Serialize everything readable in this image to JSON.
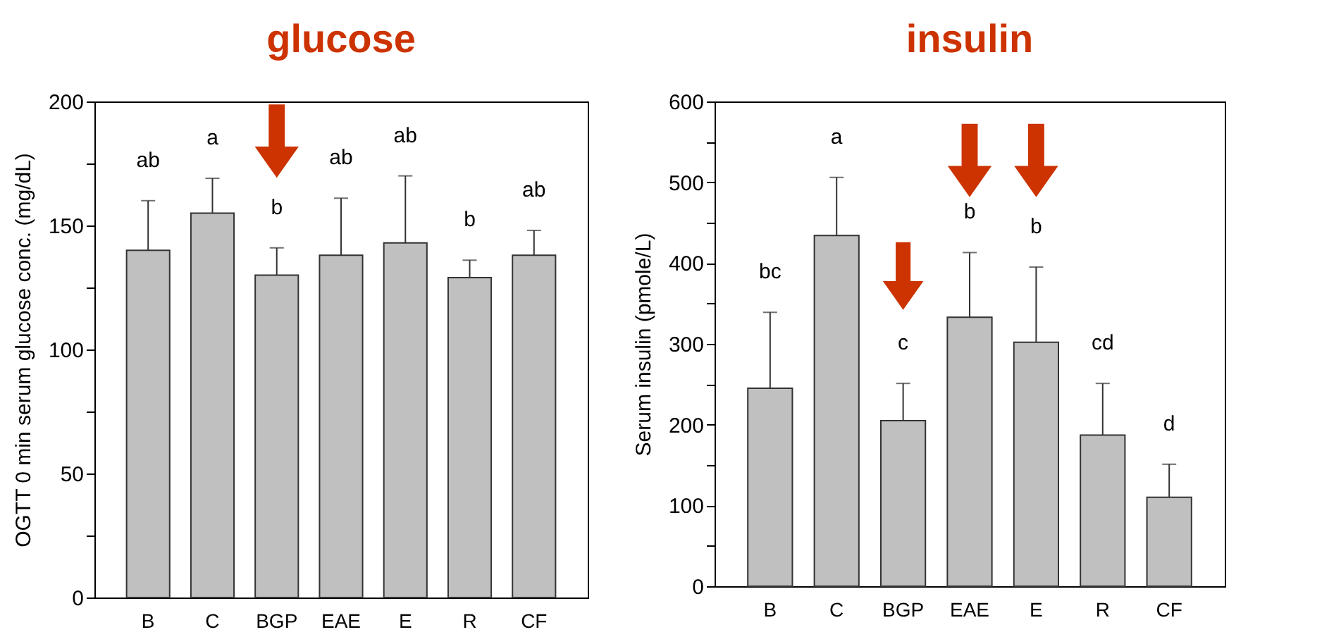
{
  "chart_data": [
    {
      "type": "bar",
      "title": "glucose",
      "ylabel": "OGTT 0 min serum glucose conc. (mg/dL)",
      "categories": [
        "B",
        "C",
        "BGP",
        "EAE",
        "E",
        "R",
        "CF"
      ],
      "values": [
        140,
        155,
        130,
        138,
        143,
        129,
        138
      ],
      "errors": [
        [
          140,
          160
        ],
        [
          155,
          169
        ],
        [
          130,
          141
        ],
        [
          138,
          161
        ],
        [
          143,
          170
        ],
        [
          129,
          136
        ],
        [
          138,
          148
        ]
      ],
      "color": "#c0c0c0",
      "ylim": [
        0,
        200
      ],
      "yticks": [
        0,
        {
          "value": 25,
          "label": null
        },
        50,
        {
          "value": 75,
          "label": null
        },
        100,
        {
          "value": 125,
          "label": null
        },
        150,
        {
          "value": 175,
          "label": null
        },
        200
      ],
      "grid": false,
      "annotations": [
        "ab",
        "a",
        "b",
        "ab",
        "ab",
        "b",
        "ab"
      ]
    },
    {
      "type": "bar",
      "title": "insulin",
      "ylabel": "Serum insulin (pmole/L)",
      "categories": [
        "B",
        "C",
        "BGP",
        "EAE",
        "E",
        "R",
        "CF"
      ],
      "values": [
        245,
        434,
        205,
        333,
        302,
        187,
        110
      ],
      "errors": [
        [
          245,
          339
        ],
        [
          434,
          506
        ],
        [
          205,
          251
        ],
        [
          333,
          413
        ],
        [
          302,
          395
        ],
        [
          187,
          251
        ],
        [
          110,
          151
        ]
      ],
      "color": "#c0c0c0",
      "ylim": [
        0,
        600
      ],
      "yticks": [
        0,
        {
          "value": 50,
          "label": null
        },
        100,
        {
          "value": 150,
          "label": null
        },
        200,
        {
          "value": 250,
          "label": null
        },
        300,
        {
          "value": 350,
          "label": null
        },
        400,
        {
          "value": 450,
          "label": null
        },
        500,
        {
          "value": 550,
          "label": null
        },
        600
      ],
      "grid": false,
      "annotations": [
        "bc",
        "a",
        "c",
        "b",
        "b",
        "cd",
        "d"
      ]
    }
  ]
}
